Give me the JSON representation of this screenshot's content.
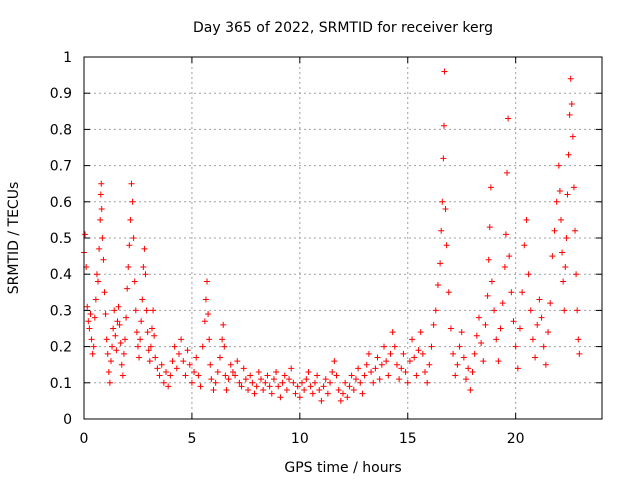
{
  "chart_data": {
    "type": "scatter",
    "title": "Day 365 of 2022, SRMTID for receiver kerg",
    "xlabel": "GPS time / hours",
    "ylabel": "SRMTID / TECUs",
    "xlim": [
      0,
      24
    ],
    "ylim": [
      0,
      1
    ],
    "x_ticks": [
      0,
      5,
      10,
      15,
      20
    ],
    "y_ticks": [
      0,
      0.1,
      0.2,
      0.3,
      0.4,
      0.5,
      0.6,
      0.7,
      0.8,
      0.9,
      1
    ],
    "x_tick_labels": [
      "0",
      "5",
      "10",
      "15",
      "20"
    ],
    "y_tick_labels": [
      "0",
      "0.1",
      "0.2",
      "0.3",
      "0.4",
      "0.5",
      "0.6",
      "0.7",
      "0.8",
      "0.9",
      "1"
    ],
    "grid": true,
    "marker": "+",
    "marker_color": "#ff0000",
    "series": [
      {
        "name": "SRMTID",
        "points": [
          [
            0.0,
            0.46
          ],
          [
            0.05,
            0.51
          ],
          [
            0.1,
            0.42
          ],
          [
            0.15,
            0.31
          ],
          [
            0.2,
            0.27
          ],
          [
            0.25,
            0.25
          ],
          [
            0.3,
            0.29
          ],
          [
            0.35,
            0.22
          ],
          [
            0.4,
            0.18
          ],
          [
            0.45,
            0.2
          ],
          [
            0.5,
            0.28
          ],
          [
            0.55,
            0.33
          ],
          [
            0.6,
            0.4
          ],
          [
            0.65,
            0.38
          ],
          [
            0.7,
            0.47
          ],
          [
            0.75,
            0.55
          ],
          [
            0.78,
            0.62
          ],
          [
            0.8,
            0.65
          ],
          [
            0.82,
            0.58
          ],
          [
            0.85,
            0.5
          ],
          [
            0.9,
            0.44
          ],
          [
            0.95,
            0.35
          ],
          [
            1.0,
            0.29
          ],
          [
            1.05,
            0.22
          ],
          [
            1.1,
            0.18
          ],
          [
            1.15,
            0.13
          ],
          [
            1.2,
            0.1
          ],
          [
            1.25,
            0.16
          ],
          [
            1.3,
            0.2
          ],
          [
            1.35,
            0.25
          ],
          [
            1.4,
            0.3
          ],
          [
            1.45,
            0.23
          ],
          [
            1.5,
            0.19
          ],
          [
            1.55,
            0.27
          ],
          [
            1.6,
            0.31
          ],
          [
            1.65,
            0.26
          ],
          [
            1.7,
            0.21
          ],
          [
            1.75,
            0.15
          ],
          [
            1.8,
            0.12
          ],
          [
            1.85,
            0.18
          ],
          [
            1.9,
            0.22
          ],
          [
            1.95,
            0.28
          ],
          [
            2.0,
            0.36
          ],
          [
            2.05,
            0.42
          ],
          [
            2.1,
            0.48
          ],
          [
            2.15,
            0.55
          ],
          [
            2.2,
            0.65
          ],
          [
            2.25,
            0.6
          ],
          [
            2.3,
            0.5
          ],
          [
            2.35,
            0.38
          ],
          [
            2.4,
            0.3
          ],
          [
            2.45,
            0.24
          ],
          [
            2.5,
            0.2
          ],
          [
            2.55,
            0.17
          ],
          [
            2.6,
            0.22
          ],
          [
            2.65,
            0.27
          ],
          [
            2.7,
            0.33
          ],
          [
            2.75,
            0.42
          ],
          [
            2.8,
            0.47
          ],
          [
            2.85,
            0.4
          ],
          [
            2.9,
            0.3
          ],
          [
            2.95,
            0.24
          ],
          [
            3.0,
            0.19
          ],
          [
            3.05,
            0.16
          ],
          [
            3.1,
            0.2
          ],
          [
            3.15,
            0.25
          ],
          [
            3.2,
            0.3
          ],
          [
            3.25,
            0.23
          ],
          [
            3.3,
            0.17
          ],
          [
            3.4,
            0.14
          ],
          [
            3.5,
            0.12
          ],
          [
            3.6,
            0.15
          ],
          [
            3.7,
            0.1
          ],
          [
            3.8,
            0.13
          ],
          [
            3.9,
            0.09
          ],
          [
            4.0,
            0.12
          ],
          [
            4.1,
            0.16
          ],
          [
            4.2,
            0.2
          ],
          [
            4.3,
            0.14
          ],
          [
            4.4,
            0.18
          ],
          [
            4.5,
            0.22
          ],
          [
            4.6,
            0.16
          ],
          [
            4.7,
            0.12
          ],
          [
            4.8,
            0.19
          ],
          [
            4.9,
            0.15
          ],
          [
            5.0,
            0.1
          ],
          [
            5.1,
            0.13
          ],
          [
            5.2,
            0.17
          ],
          [
            5.3,
            0.12
          ],
          [
            5.4,
            0.09
          ],
          [
            5.5,
            0.2
          ],
          [
            5.6,
            0.27
          ],
          [
            5.65,
            0.33
          ],
          [
            5.7,
            0.38
          ],
          [
            5.75,
            0.29
          ],
          [
            5.8,
            0.22
          ],
          [
            5.85,
            0.15
          ],
          [
            5.9,
            0.11
          ],
          [
            6.0,
            0.08
          ],
          [
            6.1,
            0.1
          ],
          [
            6.2,
            0.13
          ],
          [
            6.3,
            0.17
          ],
          [
            6.4,
            0.22
          ],
          [
            6.45,
            0.26
          ],
          [
            6.5,
            0.2
          ],
          [
            6.55,
            0.12
          ],
          [
            6.6,
            0.08
          ],
          [
            6.7,
            0.11
          ],
          [
            6.8,
            0.15
          ],
          [
            6.9,
            0.13
          ],
          [
            7.0,
            0.12
          ],
          [
            7.1,
            0.16
          ],
          [
            7.2,
            0.1
          ],
          [
            7.3,
            0.09
          ],
          [
            7.4,
            0.14
          ],
          [
            7.5,
            0.11
          ],
          [
            7.6,
            0.08
          ],
          [
            7.7,
            0.12
          ],
          [
            7.8,
            0.1
          ],
          [
            7.9,
            0.07
          ],
          [
            8.0,
            0.09
          ],
          [
            8.1,
            0.13
          ],
          [
            8.2,
            0.11
          ],
          [
            8.3,
            0.08
          ],
          [
            8.4,
            0.1
          ],
          [
            8.5,
            0.12
          ],
          [
            8.6,
            0.09
          ],
          [
            8.7,
            0.07
          ],
          [
            8.8,
            0.11
          ],
          [
            8.9,
            0.13
          ],
          [
            9.0,
            0.09
          ],
          [
            9.1,
            0.06
          ],
          [
            9.2,
            0.1
          ],
          [
            9.3,
            0.12
          ],
          [
            9.4,
            0.08
          ],
          [
            9.5,
            0.11
          ],
          [
            9.6,
            0.14
          ],
          [
            9.7,
            0.1
          ],
          [
            9.8,
            0.07
          ],
          [
            9.9,
            0.09
          ],
          [
            10.0,
            0.06
          ],
          [
            10.1,
            0.1
          ],
          [
            10.2,
            0.08
          ],
          [
            10.3,
            0.11
          ],
          [
            10.4,
            0.13
          ],
          [
            10.5,
            0.09
          ],
          [
            10.6,
            0.07
          ],
          [
            10.7,
            0.1
          ],
          [
            10.8,
            0.12
          ],
          [
            10.9,
            0.08
          ],
          [
            11.0,
            0.05
          ],
          [
            11.1,
            0.09
          ],
          [
            11.2,
            0.11
          ],
          [
            11.3,
            0.07
          ],
          [
            11.4,
            0.1
          ],
          [
            11.5,
            0.13
          ],
          [
            11.6,
            0.16
          ],
          [
            11.7,
            0.12
          ],
          [
            11.8,
            0.08
          ],
          [
            11.9,
            0.05
          ],
          [
            12.0,
            0.07
          ],
          [
            12.1,
            0.1
          ],
          [
            12.2,
            0.06
          ],
          [
            12.3,
            0.09
          ],
          [
            12.4,
            0.12
          ],
          [
            12.5,
            0.08
          ],
          [
            12.6,
            0.11
          ],
          [
            12.7,
            0.14
          ],
          [
            12.8,
            0.1
          ],
          [
            12.9,
            0.07
          ],
          [
            13.0,
            0.12
          ],
          [
            13.1,
            0.15
          ],
          [
            13.2,
            0.18
          ],
          [
            13.3,
            0.13
          ],
          [
            13.4,
            0.1
          ],
          [
            13.5,
            0.14
          ],
          [
            13.6,
            0.17
          ],
          [
            13.7,
            0.11
          ],
          [
            13.8,
            0.15
          ],
          [
            13.9,
            0.2
          ],
          [
            14.0,
            0.16
          ],
          [
            14.1,
            0.12
          ],
          [
            14.2,
            0.18
          ],
          [
            14.3,
            0.24
          ],
          [
            14.4,
            0.2
          ],
          [
            14.5,
            0.15
          ],
          [
            14.6,
            0.11
          ],
          [
            14.7,
            0.14
          ],
          [
            14.8,
            0.18
          ],
          [
            14.9,
            0.13
          ],
          [
            15.0,
            0.1
          ],
          [
            15.1,
            0.16
          ],
          [
            15.2,
            0.22
          ],
          [
            15.3,
            0.17
          ],
          [
            15.4,
            0.12
          ],
          [
            15.5,
            0.19
          ],
          [
            15.6,
            0.24
          ],
          [
            15.7,
            0.18
          ],
          [
            15.8,
            0.13
          ],
          [
            15.9,
            0.1
          ],
          [
            16.0,
            0.15
          ],
          [
            16.1,
            0.2
          ],
          [
            16.2,
            0.26
          ],
          [
            16.3,
            0.3
          ],
          [
            16.4,
            0.37
          ],
          [
            16.5,
            0.43
          ],
          [
            16.55,
            0.52
          ],
          [
            16.6,
            0.6
          ],
          [
            16.65,
            0.72
          ],
          [
            16.68,
            0.81
          ],
          [
            16.7,
            0.96
          ],
          [
            16.75,
            0.58
          ],
          [
            16.8,
            0.48
          ],
          [
            16.9,
            0.35
          ],
          [
            17.0,
            0.25
          ],
          [
            17.1,
            0.18
          ],
          [
            17.2,
            0.12
          ],
          [
            17.3,
            0.15
          ],
          [
            17.4,
            0.2
          ],
          [
            17.5,
            0.24
          ],
          [
            17.6,
            0.17
          ],
          [
            17.7,
            0.11
          ],
          [
            17.8,
            0.14
          ],
          [
            17.9,
            0.08
          ],
          [
            18.0,
            0.13
          ],
          [
            18.1,
            0.18
          ],
          [
            18.2,
            0.23
          ],
          [
            18.3,
            0.28
          ],
          [
            18.4,
            0.21
          ],
          [
            18.5,
            0.16
          ],
          [
            18.6,
            0.26
          ],
          [
            18.7,
            0.34
          ],
          [
            18.75,
            0.44
          ],
          [
            18.8,
            0.53
          ],
          [
            18.85,
            0.64
          ],
          [
            18.9,
            0.38
          ],
          [
            19.0,
            0.3
          ],
          [
            19.1,
            0.22
          ],
          [
            19.2,
            0.16
          ],
          [
            19.3,
            0.25
          ],
          [
            19.4,
            0.32
          ],
          [
            19.5,
            0.42
          ],
          [
            19.55,
            0.51
          ],
          [
            19.6,
            0.68
          ],
          [
            19.65,
            0.83
          ],
          [
            19.7,
            0.45
          ],
          [
            19.8,
            0.35
          ],
          [
            19.9,
            0.27
          ],
          [
            20.0,
            0.2
          ],
          [
            20.1,
            0.14
          ],
          [
            20.2,
            0.25
          ],
          [
            20.3,
            0.35
          ],
          [
            20.4,
            0.48
          ],
          [
            20.5,
            0.55
          ],
          [
            20.6,
            0.4
          ],
          [
            20.7,
            0.3
          ],
          [
            20.8,
            0.22
          ],
          [
            20.9,
            0.17
          ],
          [
            21.0,
            0.26
          ],
          [
            21.1,
            0.33
          ],
          [
            21.2,
            0.28
          ],
          [
            21.3,
            0.2
          ],
          [
            21.4,
            0.15
          ],
          [
            21.5,
            0.24
          ],
          [
            21.6,
            0.32
          ],
          [
            21.7,
            0.45
          ],
          [
            21.8,
            0.52
          ],
          [
            21.9,
            0.6
          ],
          [
            22.0,
            0.7
          ],
          [
            22.05,
            0.63
          ],
          [
            22.1,
            0.55
          ],
          [
            22.15,
            0.46
          ],
          [
            22.2,
            0.38
          ],
          [
            22.25,
            0.3
          ],
          [
            22.3,
            0.42
          ],
          [
            22.35,
            0.5
          ],
          [
            22.4,
            0.62
          ],
          [
            22.45,
            0.73
          ],
          [
            22.5,
            0.84
          ],
          [
            22.55,
            0.94
          ],
          [
            22.6,
            0.87
          ],
          [
            22.65,
            0.78
          ],
          [
            22.7,
            0.64
          ],
          [
            22.75,
            0.52
          ],
          [
            22.8,
            0.4
          ],
          [
            22.85,
            0.3
          ],
          [
            22.9,
            0.22
          ],
          [
            22.95,
            0.18
          ]
        ]
      }
    ]
  }
}
